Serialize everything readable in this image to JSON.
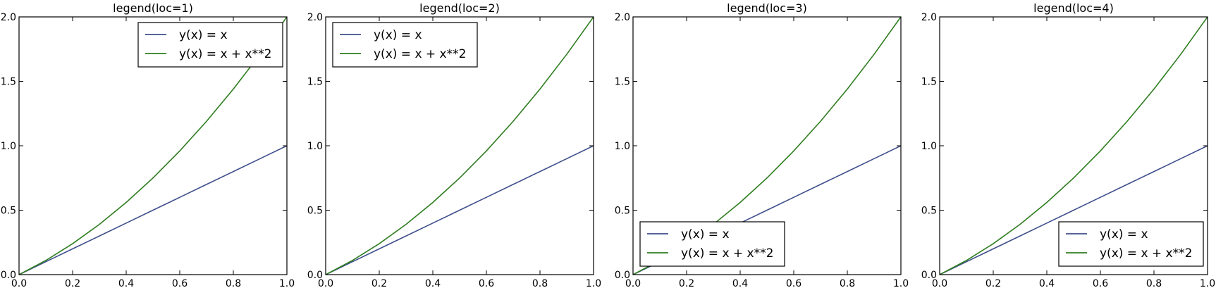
{
  "chart_data": [
    {
      "type": "line",
      "title": "legend(loc=1)",
      "xlim": [
        0.0,
        1.0
      ],
      "ylim": [
        0.0,
        2.0
      ],
      "x_ticks": [
        "0.0",
        "0.2",
        "0.4",
        "0.6",
        "0.8",
        "1.0"
      ],
      "y_ticks": [
        "0.0",
        "0.5",
        "1.0",
        "1.5",
        "2.0"
      ],
      "legend_loc": "upper right",
      "series": [
        {
          "name": "y(x) = x",
          "color": "#3f4f8c",
          "x": [
            0.0,
            0.1,
            0.2,
            0.3,
            0.4,
            0.5,
            0.6,
            0.7,
            0.8,
            0.9,
            1.0
          ],
          "y": [
            0.0,
            0.1,
            0.2,
            0.3,
            0.4,
            0.5,
            0.6,
            0.7,
            0.8,
            0.9,
            1.0
          ]
        },
        {
          "name": "y(x) = x + x**2",
          "color": "#2e7d1f",
          "x": [
            0.0,
            0.1,
            0.2,
            0.3,
            0.4,
            0.5,
            0.6,
            0.7,
            0.8,
            0.9,
            1.0
          ],
          "y": [
            0.0,
            0.11,
            0.24,
            0.39,
            0.56,
            0.75,
            0.96,
            1.19,
            1.44,
            1.71,
            2.0
          ]
        }
      ]
    },
    {
      "type": "line",
      "title": "legend(loc=2)",
      "xlim": [
        0.0,
        1.0
      ],
      "ylim": [
        0.0,
        2.0
      ],
      "x_ticks": [
        "0.0",
        "0.2",
        "0.4",
        "0.6",
        "0.8",
        "1.0"
      ],
      "y_ticks": [
        "0.0",
        "0.5",
        "1.0",
        "1.5",
        "2.0"
      ],
      "legend_loc": "upper left",
      "series": [
        {
          "name": "y(x) = x",
          "color": "#3f4f8c",
          "x": [
            0.0,
            0.1,
            0.2,
            0.3,
            0.4,
            0.5,
            0.6,
            0.7,
            0.8,
            0.9,
            1.0
          ],
          "y": [
            0.0,
            0.1,
            0.2,
            0.3,
            0.4,
            0.5,
            0.6,
            0.7,
            0.8,
            0.9,
            1.0
          ]
        },
        {
          "name": "y(x) = x + x**2",
          "color": "#2e7d1f",
          "x": [
            0.0,
            0.1,
            0.2,
            0.3,
            0.4,
            0.5,
            0.6,
            0.7,
            0.8,
            0.9,
            1.0
          ],
          "y": [
            0.0,
            0.11,
            0.24,
            0.39,
            0.56,
            0.75,
            0.96,
            1.19,
            1.44,
            1.71,
            2.0
          ]
        }
      ]
    },
    {
      "type": "line",
      "title": "legend(loc=3)",
      "xlim": [
        0.0,
        1.0
      ],
      "ylim": [
        0.0,
        2.0
      ],
      "x_ticks": [
        "0.0",
        "0.2",
        "0.4",
        "0.6",
        "0.8",
        "1.0"
      ],
      "y_ticks": [
        "0.0",
        "0.5",
        "1.0",
        "1.5",
        "2.0"
      ],
      "legend_loc": "lower left",
      "series": [
        {
          "name": "y(x) = x",
          "color": "#3f4f8c",
          "x": [
            0.0,
            0.1,
            0.2,
            0.3,
            0.4,
            0.5,
            0.6,
            0.7,
            0.8,
            0.9,
            1.0
          ],
          "y": [
            0.0,
            0.1,
            0.2,
            0.3,
            0.4,
            0.5,
            0.6,
            0.7,
            0.8,
            0.9,
            1.0
          ]
        },
        {
          "name": "y(x) = x + x**2",
          "color": "#2e7d1f",
          "x": [
            0.0,
            0.1,
            0.2,
            0.3,
            0.4,
            0.5,
            0.6,
            0.7,
            0.8,
            0.9,
            1.0
          ],
          "y": [
            0.0,
            0.11,
            0.24,
            0.39,
            0.56,
            0.75,
            0.96,
            1.19,
            1.44,
            1.71,
            2.0
          ]
        }
      ]
    },
    {
      "type": "line",
      "title": "legend(loc=4)",
      "xlim": [
        0.0,
        1.0
      ],
      "ylim": [
        0.0,
        2.0
      ],
      "x_ticks": [
        "0.0",
        "0.2",
        "0.4",
        "0.6",
        "0.8",
        "1.0"
      ],
      "y_ticks": [
        "0.0",
        "0.5",
        "1.0",
        "1.5",
        "2.0"
      ],
      "legend_loc": "lower right",
      "series": [
        {
          "name": "y(x) = x",
          "color": "#3f4f8c",
          "x": [
            0.0,
            0.1,
            0.2,
            0.3,
            0.4,
            0.5,
            0.6,
            0.7,
            0.8,
            0.9,
            1.0
          ],
          "y": [
            0.0,
            0.1,
            0.2,
            0.3,
            0.4,
            0.5,
            0.6,
            0.7,
            0.8,
            0.9,
            1.0
          ]
        },
        {
          "name": "y(x) = x + x**2",
          "color": "#2e7d1f",
          "x": [
            0.0,
            0.1,
            0.2,
            0.3,
            0.4,
            0.5,
            0.6,
            0.7,
            0.8,
            0.9,
            1.0
          ],
          "y": [
            0.0,
            0.11,
            0.24,
            0.39,
            0.56,
            0.75,
            0.96,
            1.19,
            1.44,
            1.71,
            2.0
          ]
        }
      ]
    }
  ]
}
